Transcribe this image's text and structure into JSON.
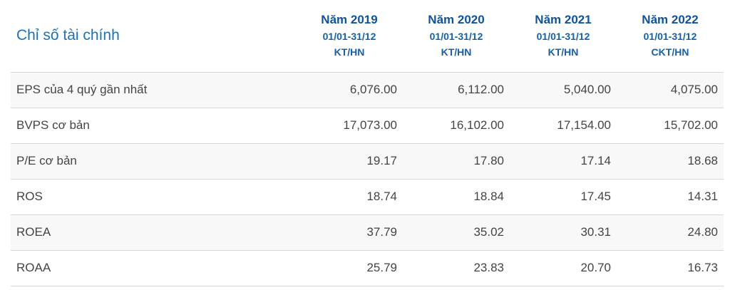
{
  "table": {
    "title": "Chỉ số tài chính",
    "columns": [
      {
        "year": "Năm 2019",
        "period": "01/01-31/12",
        "basis": "KT/HN"
      },
      {
        "year": "Năm 2020",
        "period": "01/01-31/12",
        "basis": "KT/HN"
      },
      {
        "year": "Năm 2021",
        "period": "01/01-31/12",
        "basis": "KT/HN"
      },
      {
        "year": "Năm 2022",
        "period": "01/01-31/12",
        "basis": "CKT/HN"
      }
    ],
    "rows": [
      {
        "label": "EPS của 4 quý gần nhất",
        "values": [
          "6,076.00",
          "6,112.00",
          "5,040.00",
          "4,075.00"
        ]
      },
      {
        "label": "BVPS cơ bản",
        "values": [
          "17,073.00",
          "16,102.00",
          "17,154.00",
          "15,702.00"
        ]
      },
      {
        "label": "P/E cơ bản",
        "values": [
          "19.17",
          "17.80",
          "17.14",
          "18.68"
        ]
      },
      {
        "label": "ROS",
        "values": [
          "18.74",
          "18.84",
          "17.45",
          "14.31"
        ]
      },
      {
        "label": "ROEA",
        "values": [
          "37.79",
          "35.02",
          "30.31",
          "24.80"
        ]
      },
      {
        "label": "ROAA",
        "values": [
          "25.79",
          "23.83",
          "20.70",
          "16.73"
        ]
      }
    ],
    "colors": {
      "title_blue": "#1c72b8",
      "header_year_blue": "#0e539e",
      "header_sub_blue": "#1560ab",
      "body_text": "#444444",
      "border": "#d7d7d7",
      "stripe": "#f8f8f8"
    }
  },
  "chart_data": {
    "type": "table",
    "title": "Chỉ số tài chính",
    "columns": [
      {
        "year": "Năm 2019",
        "period": "01/01-31/12",
        "basis": "KT/HN"
      },
      {
        "year": "Năm 2020",
        "period": "01/01-31/12",
        "basis": "KT/HN"
      },
      {
        "year": "Năm 2021",
        "period": "01/01-31/12",
        "basis": "KT/HN"
      },
      {
        "year": "Năm 2022",
        "period": "01/01-31/12",
        "basis": "CKT/HN"
      }
    ],
    "rows": [
      {
        "label": "EPS của 4 quý gần nhất",
        "values": [
          6076.0,
          6112.0,
          5040.0,
          4075.0
        ]
      },
      {
        "label": "BVPS cơ bản",
        "values": [
          17073.0,
          16102.0,
          17154.0,
          15702.0
        ]
      },
      {
        "label": "P/E cơ bản",
        "values": [
          19.17,
          17.8,
          17.14,
          18.68
        ]
      },
      {
        "label": "ROS",
        "values": [
          18.74,
          18.84,
          17.45,
          14.31
        ]
      },
      {
        "label": "ROEA",
        "values": [
          37.79,
          35.02,
          30.31,
          24.8
        ]
      },
      {
        "label": "ROAA",
        "values": [
          25.79,
          23.83,
          20.7,
          16.73
        ]
      }
    ]
  }
}
